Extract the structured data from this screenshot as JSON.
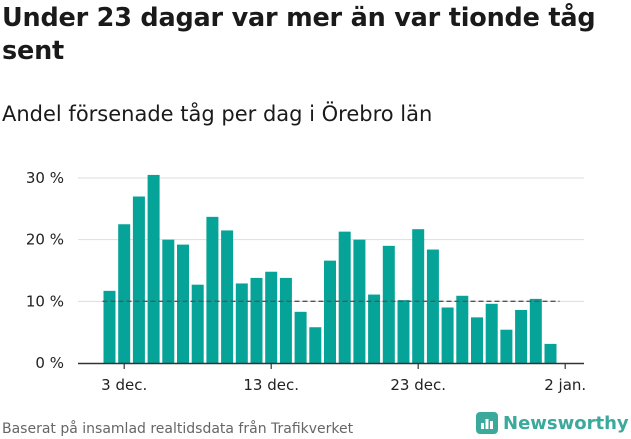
{
  "title": "Under 23 dagar var mer än var tionde tåg sent",
  "subtitle": "Andel försenade tåg per dag i Örebro län",
  "footer": "Baserat på insamlad realtidsdata från Trafikverket",
  "brand": "Newsworthy",
  "colors": {
    "bar": "#06a398",
    "grid": "#dddddd",
    "axis": "#333333",
    "reference": "#555555",
    "brand": "#3ba99c"
  },
  "chart_data": {
    "type": "bar",
    "x_tick_labels": [
      "3 dec.",
      "13 dec.",
      "23 dec.",
      "2 jan."
    ],
    "y_tick_labels": [
      "0 %",
      "10 %",
      "20 %",
      "30 %"
    ],
    "y_ticks": [
      0,
      10,
      20,
      30
    ],
    "ylim": [
      0,
      30
    ],
    "grid": true,
    "reference_line": 10,
    "series": [
      {
        "values": [
          11.7,
          22.5,
          27.0,
          30.5,
          20.0,
          19.2,
          12.7,
          23.7,
          21.5,
          12.9,
          13.8,
          14.8,
          13.8,
          8.3,
          5.8,
          16.6,
          21.3,
          20.0,
          11.1,
          19.0,
          10.2,
          21.7,
          18.4,
          9.0,
          10.9,
          7.4,
          9.6,
          5.4,
          8.6,
          10.4,
          3.1
        ]
      }
    ]
  }
}
